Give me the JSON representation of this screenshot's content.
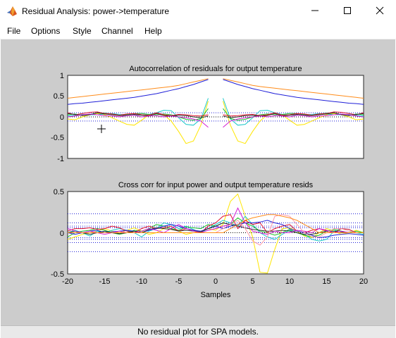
{
  "window": {
    "title": "Residual Analysis: power->temperature"
  },
  "menu": [
    "File",
    "Options",
    "Style",
    "Channel",
    "Help"
  ],
  "status": "No residual plot for SPA models.",
  "icons": {
    "app": "matlab-logo-icon",
    "minimize": "minimize-icon",
    "maximize": "maximize-icon",
    "close": "close-icon",
    "cursor": "crosshair-cursor-icon"
  },
  "axes": {
    "top": {
      "title": "Autocorrelation of residuals for output temperature",
      "xlim": [
        -20,
        20
      ],
      "ylim": [
        -1,
        1
      ],
      "yticks": [
        "1",
        "0.5",
        "0",
        "-0.5",
        "-1"
      ],
      "confidence": [
        0.1,
        -0.1
      ]
    },
    "bottom": {
      "title": "Cross corr for input power and output temperature resids",
      "xlim": [
        -20,
        20
      ],
      "ylim": [
        -0.5,
        0.5
      ],
      "yticks": [
        "0.5",
        "0",
        "-0.5"
      ],
      "xticks": [
        "-20",
        "-15",
        "-10",
        "-5",
        "0",
        "5",
        "10",
        "15",
        "20"
      ],
      "xlabel": "Samples",
      "confidence": [
        0.23,
        0.12,
        0.08,
        0.06,
        -0.06,
        -0.08,
        -0.12,
        -0.23
      ]
    }
  },
  "colors": {
    "orange": "#ff8c1a",
    "blue": "#1f1fd8",
    "cyan": "#18c8c8",
    "yellow": "#ffe600",
    "green": "#1bbf2a",
    "red": "#e0102a",
    "magenta": "#d21ad2",
    "dark": "#303030",
    "pink": "#ff9aa8"
  },
  "chart_data": [
    {
      "type": "line",
      "title": "Autocorrelation of residuals for output temperature",
      "x": [
        -20,
        -19,
        -18,
        -17,
        -16,
        -15,
        -14,
        -13,
        -12,
        -11,
        -10,
        -9,
        -8,
        -7,
        -6,
        -5,
        -4,
        -3,
        -2,
        -1
      ],
      "xlim": [
        -20,
        20
      ],
      "ylim": [
        -1,
        1
      ],
      "series": [
        {
          "color": "orange",
          "values": [
            0.45,
            0.47,
            0.49,
            0.51,
            0.53,
            0.55,
            0.57,
            0.59,
            0.61,
            0.63,
            0.65,
            0.67,
            0.69,
            0.71,
            0.73,
            0.76,
            0.8,
            0.84,
            0.88,
            0.92
          ]
        },
        {
          "color": "blue",
          "values": [
            0.3,
            0.32,
            0.33,
            0.35,
            0.37,
            0.39,
            0.41,
            0.43,
            0.45,
            0.47,
            0.5,
            0.53,
            0.56,
            0.6,
            0.64,
            0.68,
            0.73,
            0.78,
            0.84,
            0.9
          ]
        },
        {
          "color": "yellow",
          "values": [
            -0.05,
            -0.07,
            0.0,
            0.05,
            0.08,
            0.05,
            -0.02,
            -0.1,
            -0.18,
            -0.2,
            -0.08,
            0.05,
            0.1,
            0.05,
            -0.1,
            -0.35,
            -0.64,
            -0.58,
            -0.2,
            0.38
          ]
        },
        {
          "color": "cyan",
          "values": [
            0.02,
            0.04,
            0.06,
            0.05,
            0.05,
            0.07,
            0.08,
            0.06,
            0.05,
            0.05,
            0.04,
            0.06,
            0.1,
            0.16,
            0.15,
            -0.02,
            -0.18,
            -0.2,
            -0.05,
            0.45
          ]
        },
        {
          "color": "green",
          "values": [
            0.05,
            0.07,
            0.03,
            0.06,
            0.1,
            0.09,
            0.07,
            0.04,
            0.06,
            0.08,
            0.08,
            0.06,
            0.05,
            0.07,
            0.05,
            0.0,
            -0.06,
            -0.08,
            -0.04,
            0.2
          ]
        },
        {
          "color": "red",
          "values": [
            0.1,
            0.05,
            0.08,
            0.11,
            0.12,
            0.08,
            0.07,
            0.04,
            0.07,
            0.08,
            0.05,
            0.04,
            0.1,
            0.05,
            0.03,
            0.06,
            0.05,
            0.03,
            0.02,
            0.05
          ]
        },
        {
          "color": "dark",
          "values": [
            0.08,
            0.06,
            0.03,
            0.05,
            0.1,
            0.07,
            0.05,
            0.03,
            0.04,
            0.06,
            0.04,
            0.02,
            0.08,
            0.03,
            0.02,
            0.04,
            0.03,
            0.0,
            -0.02,
            0.02
          ]
        },
        {
          "color": "magenta",
          "values": [
            0.0,
            0.02,
            0.05,
            0.07,
            0.05,
            0.03,
            0.02,
            0.0,
            0.03,
            0.04,
            0.0,
            0.02,
            0.03,
            0.0,
            0.02,
            0.0,
            -0.02,
            -0.05,
            -0.1,
            -0.25
          ]
        }
      ]
    },
    {
      "type": "line",
      "title": "Cross corr for input power and output temperature resids",
      "x": [
        -20,
        -19,
        -18,
        -17,
        -16,
        -15,
        -14,
        -13,
        -12,
        -11,
        -10,
        -9,
        -8,
        -7,
        -6,
        -5,
        -4,
        -3,
        -2,
        -1,
        0,
        1,
        2,
        3,
        4,
        5,
        6,
        7,
        8,
        9,
        10,
        11,
        12,
        13,
        14,
        15,
        16,
        17,
        18,
        19,
        20
      ],
      "xlim": [
        -20,
        20
      ],
      "ylim": [
        -0.5,
        0.5
      ],
      "xlabel": "Samples",
      "series": [
        {
          "color": "yellow",
          "values": [
            -0.08,
            -0.05,
            -0.02,
            0.0,
            0.02,
            0.05,
            0.02,
            0.0,
            0.03,
            0.06,
            0.02,
            -0.02,
            0.0,
            0.05,
            0.04,
            0.02,
            -0.02,
            0.0,
            0.02,
            0.05,
            0.03,
            0.1,
            0.38,
            0.47,
            0.2,
            -0.05,
            -0.48,
            -0.49,
            -0.2,
            0.05,
            0.06,
            0.02,
            -0.04,
            -0.06,
            0.0,
            0.05,
            0.02,
            -0.02,
            0.0,
            0.03,
            0.0
          ]
        },
        {
          "color": "cyan",
          "values": [
            0.0,
            0.03,
            0.0,
            -0.04,
            0.02,
            0.0,
            0.03,
            0.05,
            0.03,
            0.0,
            -0.05,
            0.02,
            0.05,
            0.12,
            0.1,
            0.05,
            0.08,
            0.04,
            0.0,
            0.05,
            0.1,
            0.15,
            0.12,
            0.08,
            0.2,
            0.1,
            0.0,
            -0.05,
            -0.08,
            -0.02,
            0.03,
            0.0,
            -0.02,
            -0.08,
            -0.1,
            -0.08,
            0.02,
            0.05,
            0.04,
            0.0,
            -0.02
          ]
        },
        {
          "color": "green",
          "values": [
            -0.05,
            0.0,
            0.02,
            0.03,
            0.05,
            0.03,
            0.0,
            -0.02,
            0.0,
            0.03,
            0.02,
            0.05,
            0.1,
            0.08,
            0.05,
            0.03,
            0.07,
            0.06,
            0.05,
            0.1,
            0.08,
            0.12,
            0.1,
            0.18,
            0.12,
            0.08,
            0.02,
            0.0,
            -0.03,
            0.0,
            0.04,
            0.0,
            -0.03,
            -0.05,
            -0.03,
            0.02,
            0.04,
            0.02,
            0.0,
            0.02,
            0.0
          ]
        },
        {
          "color": "red",
          "values": [
            0.02,
            0.05,
            0.05,
            0.06,
            0.04,
            0.05,
            0.08,
            0.06,
            0.02,
            0.0,
            0.05,
            0.08,
            0.05,
            0.06,
            0.08,
            0.02,
            0.05,
            0.03,
            0.0,
            0.08,
            0.12,
            0.2,
            0.22,
            0.05,
            0.15,
            0.1,
            0.12,
            0.0,
            0.05,
            0.08,
            0.1,
            0.02,
            0.0,
            0.03,
            0.05,
            0.02,
            0.0,
            0.05,
            0.04,
            0.0,
            0.0
          ]
        },
        {
          "color": "blue",
          "values": [
            0.0,
            -0.02,
            0.0,
            0.02,
            0.03,
            0.0,
            0.01,
            0.02,
            0.03,
            0.02,
            0.0,
            0.03,
            0.05,
            0.08,
            0.1,
            0.08,
            0.05,
            0.03,
            0.02,
            0.05,
            0.08,
            0.05,
            0.08,
            0.1,
            0.12,
            0.12,
            0.13,
            0.15,
            0.12,
            0.1,
            0.05,
            0.02,
            0.0,
            -0.03,
            -0.06,
            -0.05,
            -0.03,
            -0.02,
            -0.01,
            -0.02,
            -0.03
          ]
        },
        {
          "color": "dark",
          "values": [
            0.0,
            0.02,
            0.0,
            -0.02,
            0.0,
            0.02,
            0.0,
            -0.01,
            0.0,
            0.02,
            0.0,
            0.04,
            0.06,
            0.05,
            0.04,
            0.02,
            0.03,
            0.02,
            0.01,
            0.05,
            0.08,
            0.12,
            0.1,
            0.08,
            0.06,
            0.04,
            0.03,
            0.02,
            0.02,
            0.03,
            0.02,
            0.0,
            -0.02,
            -0.02,
            0.0,
            0.02,
            0.02,
            0.01,
            0.0,
            0.0,
            0.0
          ]
        },
        {
          "color": "magenta",
          "values": [
            0.05,
            0.02,
            0.0,
            0.02,
            0.0,
            -0.02,
            0.0,
            0.02,
            0.0,
            0.0,
            0.02,
            0.05,
            0.03,
            0.0,
            0.05,
            0.1,
            0.05,
            0.02,
            0.0,
            0.03,
            0.05,
            0.08,
            0.1,
            0.3,
            0.12,
            0.02,
            0.0,
            -0.02,
            0.02,
            0.0,
            0.0,
            0.03,
            0.02,
            0.0,
            0.05,
            0.03,
            0.0,
            0.02,
            0.0,
            0.0,
            0.0
          ]
        },
        {
          "color": "pink",
          "values": [
            0.0,
            0.0,
            0.0,
            0.0,
            0.0,
            0.0,
            0.0,
            0.0,
            0.0,
            0.0,
            0.0,
            0.0,
            0.0,
            0.0,
            0.0,
            0.0,
            0.0,
            0.0,
            0.0,
            0.0,
            0.0,
            0.05,
            0.1,
            0.15,
            0.05,
            -0.1,
            -0.15,
            -0.05,
            0.2,
            0.22,
            0.2,
            0.1,
            0.0,
            -0.05,
            -0.05,
            0.0,
            0.05,
            0.05,
            0.02,
            0.0,
            0.0
          ]
        },
        {
          "color": "orange",
          "values": [
            0.0,
            0.0,
            0.0,
            0.0,
            0.0,
            0.0,
            0.0,
            0.0,
            0.0,
            0.0,
            0.0,
            0.0,
            0.0,
            0.0,
            0.0,
            0.0,
            0.0,
            0.0,
            0.0,
            0.0,
            0.0,
            0.0,
            0.05,
            0.1,
            0.15,
            0.18,
            0.2,
            0.22,
            0.22,
            0.2,
            0.18,
            0.15,
            0.1,
            0.05,
            0.0,
            0.0,
            0.0,
            0.0,
            0.0,
            0.0,
            0.0
          ]
        }
      ]
    }
  ]
}
